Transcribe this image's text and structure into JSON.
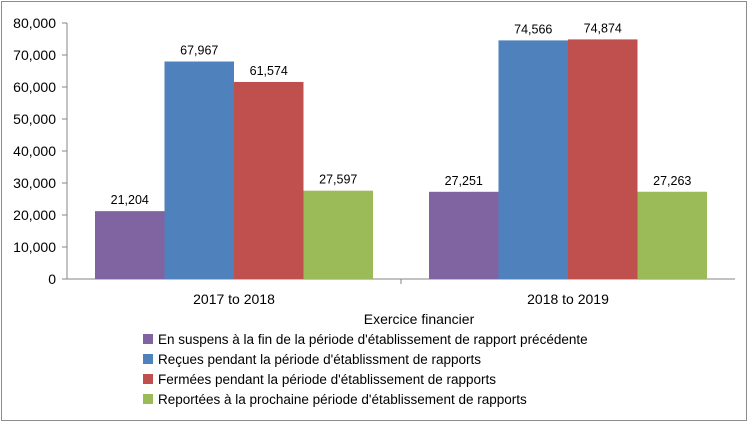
{
  "chart_data": {
    "type": "bar",
    "title": "",
    "xlabel": "Exercice financier",
    "ylabel": "",
    "ylim": [
      0,
      80000
    ],
    "yticks": [
      0,
      10000,
      20000,
      30000,
      40000,
      50000,
      60000,
      70000,
      80000
    ],
    "ytick_labels": [
      "0",
      "10,000",
      "20,000",
      "30,000",
      "40,000",
      "50,000",
      "60,000",
      "70,000",
      "80,000"
    ],
    "categories": [
      "2017 to 2018",
      "2018 to 2019"
    ],
    "series": [
      {
        "name": "En suspens à la fin de la période d'établissement de rapport précédente",
        "color": "#8064a2",
        "values": [
          21204,
          27251
        ],
        "labels": [
          "21,204",
          "27,251"
        ]
      },
      {
        "name": "Reçues pendant la période d'établissment de rapports",
        "color": "#4f81bd",
        "values": [
          67967,
          74566
        ],
        "labels": [
          "67,967",
          "74,566"
        ]
      },
      {
        "name": "Fermées pendant la période d'établissement de rapports",
        "color": "#c0504d",
        "values": [
          61574,
          74874
        ],
        "labels": [
          "61,574",
          "74,874"
        ]
      },
      {
        "name": "Reportées à la prochaine période d'établissement de rapports",
        "color": "#9bbb59",
        "values": [
          27597,
          27263
        ],
        "labels": [
          "27,597",
          "27,263"
        ]
      }
    ],
    "grid": false,
    "legend_position": "bottom"
  }
}
